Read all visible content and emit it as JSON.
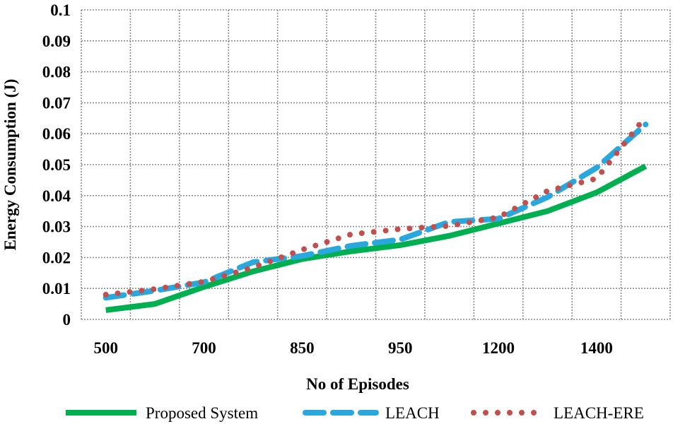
{
  "chart_data": {
    "type": "line",
    "title": "",
    "xlabel": "No of  Episodes",
    "ylabel": "Energy Consumption (J)",
    "ylim": [
      0,
      0.1
    ],
    "y_ticks": [
      "0",
      "0.01",
      "0.02",
      "0.03",
      "0.04",
      "0.05",
      "0.06",
      "0.07",
      "0.08",
      "0.09",
      "0.1"
    ],
    "categories": [
      "500",
      "",
      "700",
      "",
      "850",
      "",
      "950",
      "",
      "1200",
      "",
      "1400",
      ""
    ],
    "grid": true,
    "legend_position": "bottom",
    "series": [
      {
        "name": "Proposed System",
        "color": "#00b050",
        "style": "solid",
        "values": [
          0.003,
          0.005,
          0.0105,
          0.0155,
          0.0195,
          0.022,
          0.024,
          0.027,
          0.031,
          0.035,
          0.041,
          0.0495
        ]
      },
      {
        "name": "LEACH",
        "color": "#29a8e0",
        "style": "dash",
        "values": [
          0.007,
          0.0093,
          0.012,
          0.0185,
          0.0205,
          0.0238,
          0.0258,
          0.0315,
          0.0325,
          0.0395,
          0.049,
          0.063
        ]
      },
      {
        "name": "LEACH-ERE",
        "color": "#c0504d",
        "style": "dot",
        "values": [
          0.008,
          0.0098,
          0.0122,
          0.0168,
          0.0225,
          0.0275,
          0.0292,
          0.0302,
          0.033,
          0.0415,
          0.0455,
          0.0655
        ]
      }
    ]
  }
}
